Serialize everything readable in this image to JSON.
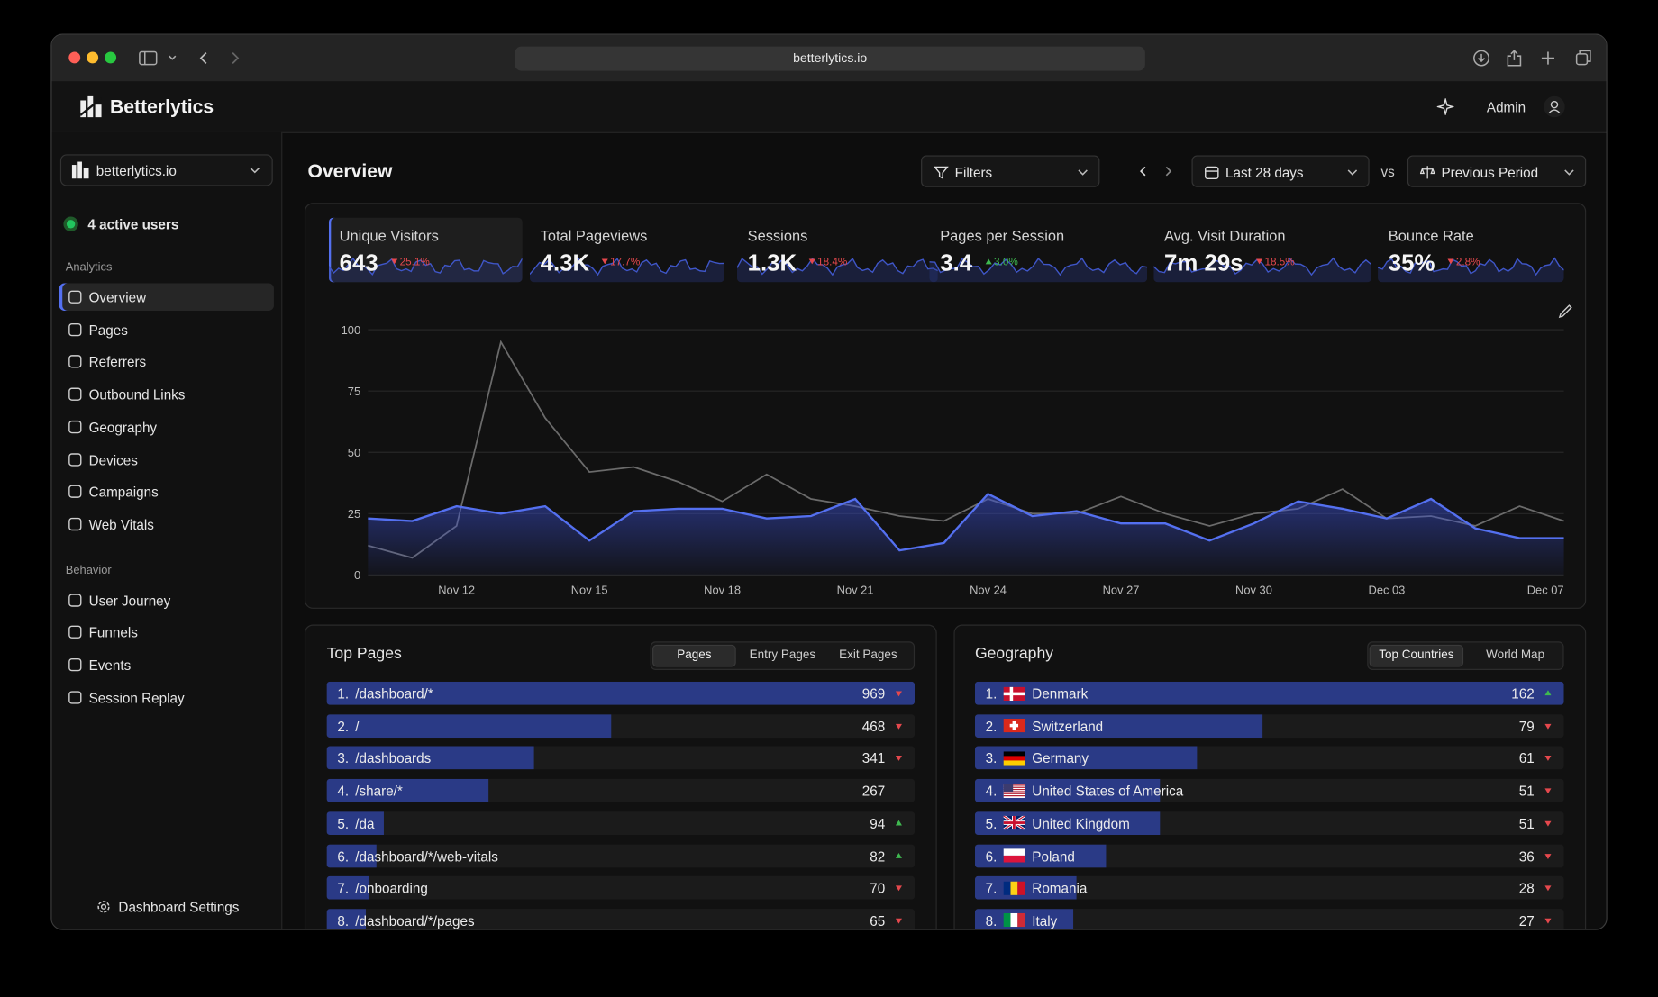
{
  "browser": {
    "url": "betterlytics.io"
  },
  "header": {
    "brand": "Betterlytics",
    "user": "Admin"
  },
  "sidebar": {
    "site": "betterlytics.io",
    "active_users": "4 active users",
    "sections": [
      {
        "title": "Analytics",
        "active_index": 0,
        "items": [
          "Overview",
          "Pages",
          "Referrers",
          "Outbound Links",
          "Geography",
          "Devices",
          "Campaigns",
          "Web Vitals"
        ]
      },
      {
        "title": "Behavior",
        "items": [
          "User Journey",
          "Funnels",
          "Events",
          "Session Replay"
        ]
      }
    ],
    "settings": "Dashboard Settings"
  },
  "toolbar": {
    "title": "Overview",
    "filters": "Filters",
    "range": "Last 28 days",
    "vs": "vs",
    "compare": "Previous Period"
  },
  "metrics": {
    "active_index": 0,
    "items": [
      {
        "label": "Unique Visitors",
        "value": "643",
        "change": "25.1%",
        "trend": "down"
      },
      {
        "label": "Total Pageviews",
        "value": "4.3K",
        "change": "17.7%",
        "trend": "down"
      },
      {
        "label": "Sessions",
        "value": "1.3K",
        "change": "18.4%",
        "trend": "down"
      },
      {
        "label": "Pages per Session",
        "value": "3.4",
        "change": "3.0%",
        "trend": "up"
      },
      {
        "label": "Avg. Visit Duration",
        "value": "7m 29s",
        "change": "18.5%",
        "trend": "down"
      },
      {
        "label": "Bounce Rate",
        "value": "35%",
        "change": "2.8%",
        "trend": "down"
      }
    ]
  },
  "chart": {
    "type": "line",
    "categories": [
      null,
      null,
      "Nov 12",
      null,
      null,
      "Nov 15",
      null,
      null,
      "Nov 18",
      null,
      null,
      "Nov 21",
      null,
      null,
      "Nov 24",
      null,
      null,
      "Nov 27",
      null,
      null,
      "Nov 30",
      null,
      null,
      "Dec 03",
      null,
      null,
      null,
      "Dec 07"
    ],
    "series": [
      {
        "color": "#6b6b6b",
        "values": [
          12,
          7,
          20,
          95,
          64,
          42,
          44,
          38,
          30,
          41,
          31,
          28,
          24,
          22,
          31,
          25,
          25,
          32,
          25,
          20,
          25,
          27,
          35,
          23,
          24,
          20,
          28,
          22
        ]
      },
      {
        "color": "#5470f0",
        "fill": true,
        "values": [
          23,
          22,
          28,
          25,
          28,
          14,
          26,
          27,
          27,
          23,
          24,
          31,
          10,
          13,
          33,
          24,
          26,
          21,
          21,
          14,
          21,
          30,
          27,
          23,
          31,
          19,
          15,
          15
        ]
      }
    ],
    "ylim": [
      0,
      100
    ],
    "yticks": [
      0,
      25,
      50,
      75,
      100
    ],
    "grid": true
  },
  "top_pages": {
    "title": "Top Pages",
    "tabs": [
      "Pages",
      "Entry Pages",
      "Exit Pages"
    ],
    "active_tab": 0,
    "rows": [
      {
        "rank": "1.",
        "label": "/dashboard/*",
        "value": 969,
        "trend": "down"
      },
      {
        "rank": "2.",
        "label": "/",
        "value": 468,
        "trend": "down"
      },
      {
        "rank": "3.",
        "label": "/dashboards",
        "value": 341,
        "trend": "down"
      },
      {
        "rank": "4.",
        "label": "/share/*",
        "value": 267,
        "trend": null
      },
      {
        "rank": "5.",
        "label": "/da",
        "value": 94,
        "trend": "up"
      },
      {
        "rank": "6.",
        "label": "/dashboard/*/web-vitals",
        "value": 82,
        "trend": "up"
      },
      {
        "rank": "7.",
        "label": "/onboarding",
        "value": 70,
        "trend": "down"
      },
      {
        "rank": "8.",
        "label": "/dashboard/*/pages",
        "value": 65,
        "trend": "down"
      }
    ]
  },
  "geography": {
    "title": "Geography",
    "tabs": [
      "Top Countries",
      "World Map"
    ],
    "active_tab": 0,
    "rows": [
      {
        "rank": "1.",
        "label": "Denmark",
        "value": 162,
        "trend": "up"
      },
      {
        "rank": "2.",
        "label": "Switzerland",
        "value": 79,
        "trend": "down"
      },
      {
        "rank": "3.",
        "label": "Germany",
        "value": 61,
        "trend": "down"
      },
      {
        "rank": "4.",
        "label": "United States of America",
        "value": 51,
        "trend": "down"
      },
      {
        "rank": "5.",
        "label": "United Kingdom",
        "value": 51,
        "trend": "down"
      },
      {
        "rank": "6.",
        "label": "Poland",
        "value": 36,
        "trend": "down"
      },
      {
        "rank": "7.",
        "label": "Romania",
        "value": 28,
        "trend": "down"
      },
      {
        "rank": "8.",
        "label": "Italy",
        "value": 27,
        "trend": "down"
      }
    ]
  }
}
